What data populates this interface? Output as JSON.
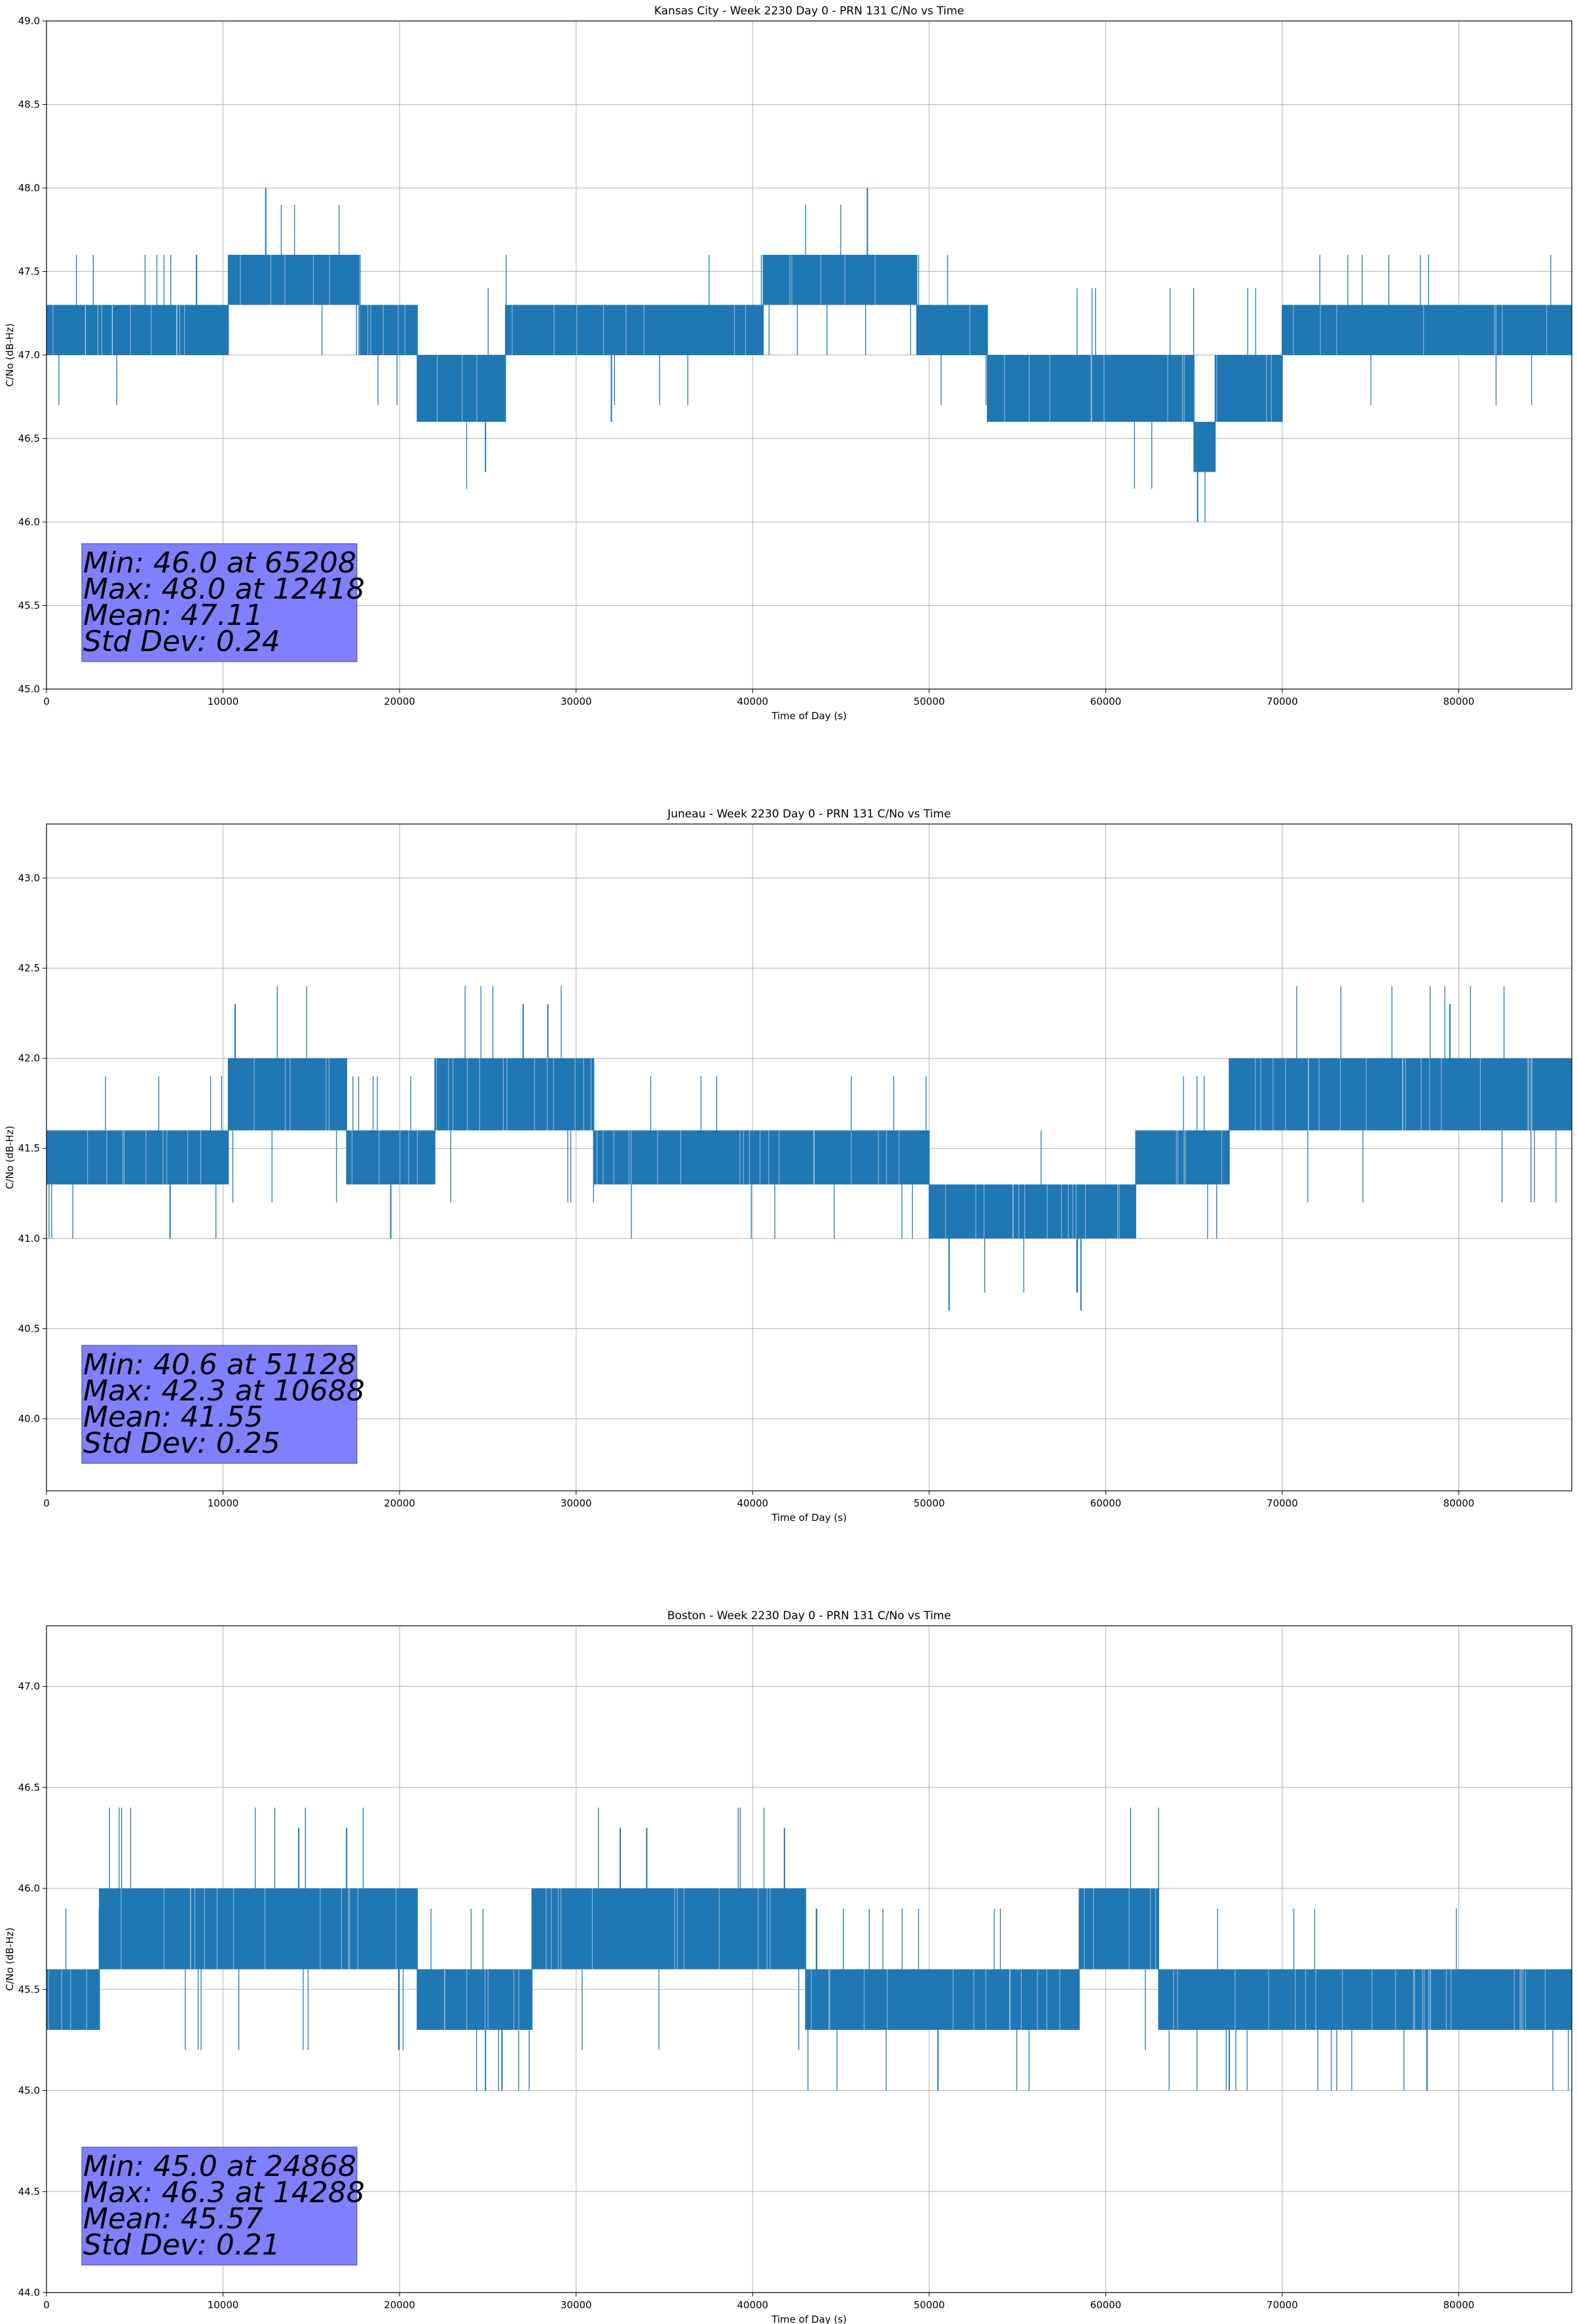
{
  "chart_data": [
    {
      "type": "line",
      "title": "Kansas City - Week 2230 Day 0 - PRN 131 C/No vs Time",
      "xlabel": "Time of Day (s)",
      "ylabel": "C/No (dB-Hz)",
      "xlim": [
        0,
        86400
      ],
      "ylim": [
        45.0,
        49.0
      ],
      "xticks": [
        0,
        10000,
        20000,
        30000,
        40000,
        50000,
        60000,
        70000,
        80000
      ],
      "xtick_labels": [
        "0",
        "10000",
        "20000",
        "30000",
        "40000",
        "50000",
        "60000",
        "70000",
        "80000"
      ],
      "yticks": [
        45.0,
        45.5,
        46.0,
        46.5,
        47.0,
        47.5,
        48.0,
        48.5,
        49.0
      ],
      "ytick_labels": [
        "45.0",
        "45.5",
        "46.0",
        "46.5",
        "47.0",
        "47.5",
        "48.0",
        "48.5",
        "49.0"
      ],
      "grid": true,
      "series_color": "#1f77b4",
      "seed": 11,
      "bands": [
        {
          "start": 0,
          "end": 10300,
          "lo": 47.0,
          "hi": 47.3
        },
        {
          "start": 10300,
          "end": 17700,
          "lo": 47.3,
          "hi": 47.6
        },
        {
          "start": 17700,
          "end": 21000,
          "lo": 47.0,
          "hi": 47.3
        },
        {
          "start": 21000,
          "end": 26000,
          "lo": 46.6,
          "hi": 47.0
        },
        {
          "start": 26000,
          "end": 40600,
          "lo": 47.0,
          "hi": 47.3
        },
        {
          "start": 40600,
          "end": 49300,
          "lo": 47.3,
          "hi": 47.6
        },
        {
          "start": 49300,
          "end": 53300,
          "lo": 47.0,
          "hi": 47.3
        },
        {
          "start": 53300,
          "end": 65000,
          "lo": 46.6,
          "hi": 47.0
        },
        {
          "start": 65000,
          "end": 66200,
          "lo": 46.3,
          "hi": 46.6
        },
        {
          "start": 66200,
          "end": 70000,
          "lo": 46.6,
          "hi": 47.0
        },
        {
          "start": 70000,
          "end": 86400,
          "lo": 47.0,
          "hi": 47.3
        }
      ],
      "spikes": [
        {
          "x": 8500,
          "y": 47.6
        },
        {
          "x": 12418,
          "y": 48.0
        },
        {
          "x": 46500,
          "y": 48.0
        },
        {
          "x": 24868,
          "y": 46.3
        },
        {
          "x": 65208,
          "y": 46.0
        },
        {
          "x": 32000,
          "y": 46.6
        }
      ],
      "stats": {
        "line1": "Min: 46.0 at 65208",
        "line2": "Max: 48.0 at 12418",
        "line3": "Mean: 47.11",
        "line4": "Std Dev: 0.24"
      }
    },
    {
      "type": "line",
      "title": "Juneau - Week 2230 Day 0 - PRN 131 C/No vs Time",
      "xlabel": "Time of Day (s)",
      "ylabel": "C/No (dB-Hz)",
      "xlim": [
        0,
        86400
      ],
      "ylim": [
        39.6,
        43.3
      ],
      "xticks": [
        0,
        10000,
        20000,
        30000,
        40000,
        50000,
        60000,
        70000,
        80000
      ],
      "xtick_labels": [
        "0",
        "10000",
        "20000",
        "30000",
        "40000",
        "50000",
        "60000",
        "70000",
        "80000"
      ],
      "yticks": [
        40.0,
        40.5,
        41.0,
        41.5,
        42.0,
        42.5,
        43.0
      ],
      "ytick_labels": [
        "40.0",
        "40.5",
        "41.0",
        "41.5",
        "42.0",
        "42.5",
        "43.0"
      ],
      "grid": true,
      "series_color": "#1f77b4",
      "seed": 23,
      "bands": [
        {
          "start": 0,
          "end": 10300,
          "lo": 41.3,
          "hi": 41.6
        },
        {
          "start": 10300,
          "end": 17000,
          "lo": 41.6,
          "hi": 42.0
        },
        {
          "start": 17000,
          "end": 22000,
          "lo": 41.3,
          "hi": 41.6
        },
        {
          "start": 22000,
          "end": 31000,
          "lo": 41.6,
          "hi": 42.0
        },
        {
          "start": 31000,
          "end": 50000,
          "lo": 41.3,
          "hi": 41.6
        },
        {
          "start": 50000,
          "end": 61700,
          "lo": 41.0,
          "hi": 41.3
        },
        {
          "start": 61700,
          "end": 67000,
          "lo": 41.3,
          "hi": 41.6
        },
        {
          "start": 67000,
          "end": 86400,
          "lo": 41.6,
          "hi": 42.0
        }
      ],
      "spikes": [
        {
          "x": 10688,
          "y": 42.3
        },
        {
          "x": 27000,
          "y": 42.3
        },
        {
          "x": 28400,
          "y": 42.3
        },
        {
          "x": 79500,
          "y": 42.3
        },
        {
          "x": 51128,
          "y": 40.6
        },
        {
          "x": 58600,
          "y": 40.6
        },
        {
          "x": 7000,
          "y": 41.0
        },
        {
          "x": 19500,
          "y": 41.0
        }
      ],
      "stats": {
        "line1": "Min: 40.6 at 51128",
        "line2": "Max: 42.3 at 10688",
        "line3": "Mean: 41.55",
        "line4": "Std Dev: 0.25"
      }
    },
    {
      "type": "line",
      "title": "Boston - Week 2230 Day 0 - PRN 131 C/No vs Time",
      "xlabel": "Time of Day (s)",
      "ylabel": "C/No (dB-Hz)",
      "xlim": [
        0,
        86400
      ],
      "ylim": [
        44.0,
        47.3
      ],
      "xticks": [
        0,
        10000,
        20000,
        30000,
        40000,
        50000,
        60000,
        70000,
        80000
      ],
      "xtick_labels": [
        "0",
        "10000",
        "20000",
        "30000",
        "40000",
        "50000",
        "60000",
        "70000",
        "80000"
      ],
      "yticks": [
        44.0,
        44.5,
        45.0,
        45.5,
        46.0,
        46.5,
        47.0
      ],
      "ytick_labels": [
        "44.0",
        "44.5",
        "45.0",
        "45.5",
        "46.0",
        "46.5",
        "47.0"
      ],
      "grid": true,
      "series_color": "#1f77b4",
      "seed": 37,
      "bands": [
        {
          "start": 0,
          "end": 3000,
          "lo": 45.3,
          "hi": 45.6
        },
        {
          "start": 3000,
          "end": 21000,
          "lo": 45.6,
          "hi": 46.0
        },
        {
          "start": 21000,
          "end": 27500,
          "lo": 45.3,
          "hi": 45.6
        },
        {
          "start": 27500,
          "end": 43000,
          "lo": 45.6,
          "hi": 46.0
        },
        {
          "start": 43000,
          "end": 58500,
          "lo": 45.3,
          "hi": 45.6
        },
        {
          "start": 58500,
          "end": 63000,
          "lo": 45.6,
          "hi": 46.0
        },
        {
          "start": 63000,
          "end": 86400,
          "lo": 45.3,
          "hi": 45.6
        }
      ],
      "spikes": [
        {
          "x": 14288,
          "y": 46.3
        },
        {
          "x": 17000,
          "y": 46.3
        },
        {
          "x": 32500,
          "y": 46.3
        },
        {
          "x": 34000,
          "y": 46.3
        },
        {
          "x": 41800,
          "y": 46.3
        },
        {
          "x": 24868,
          "y": 45.0
        },
        {
          "x": 25800,
          "y": 45.0
        },
        {
          "x": 50500,
          "y": 45.0
        },
        {
          "x": 67000,
          "y": 45.0
        },
        {
          "x": 78200,
          "y": 45.0
        }
      ],
      "stats": {
        "line1": "Min: 45.0 at 24868",
        "line2": "Max: 46.3 at 14288",
        "line3": "Mean: 45.57",
        "line4": "Std Dev: 0.21"
      }
    }
  ]
}
